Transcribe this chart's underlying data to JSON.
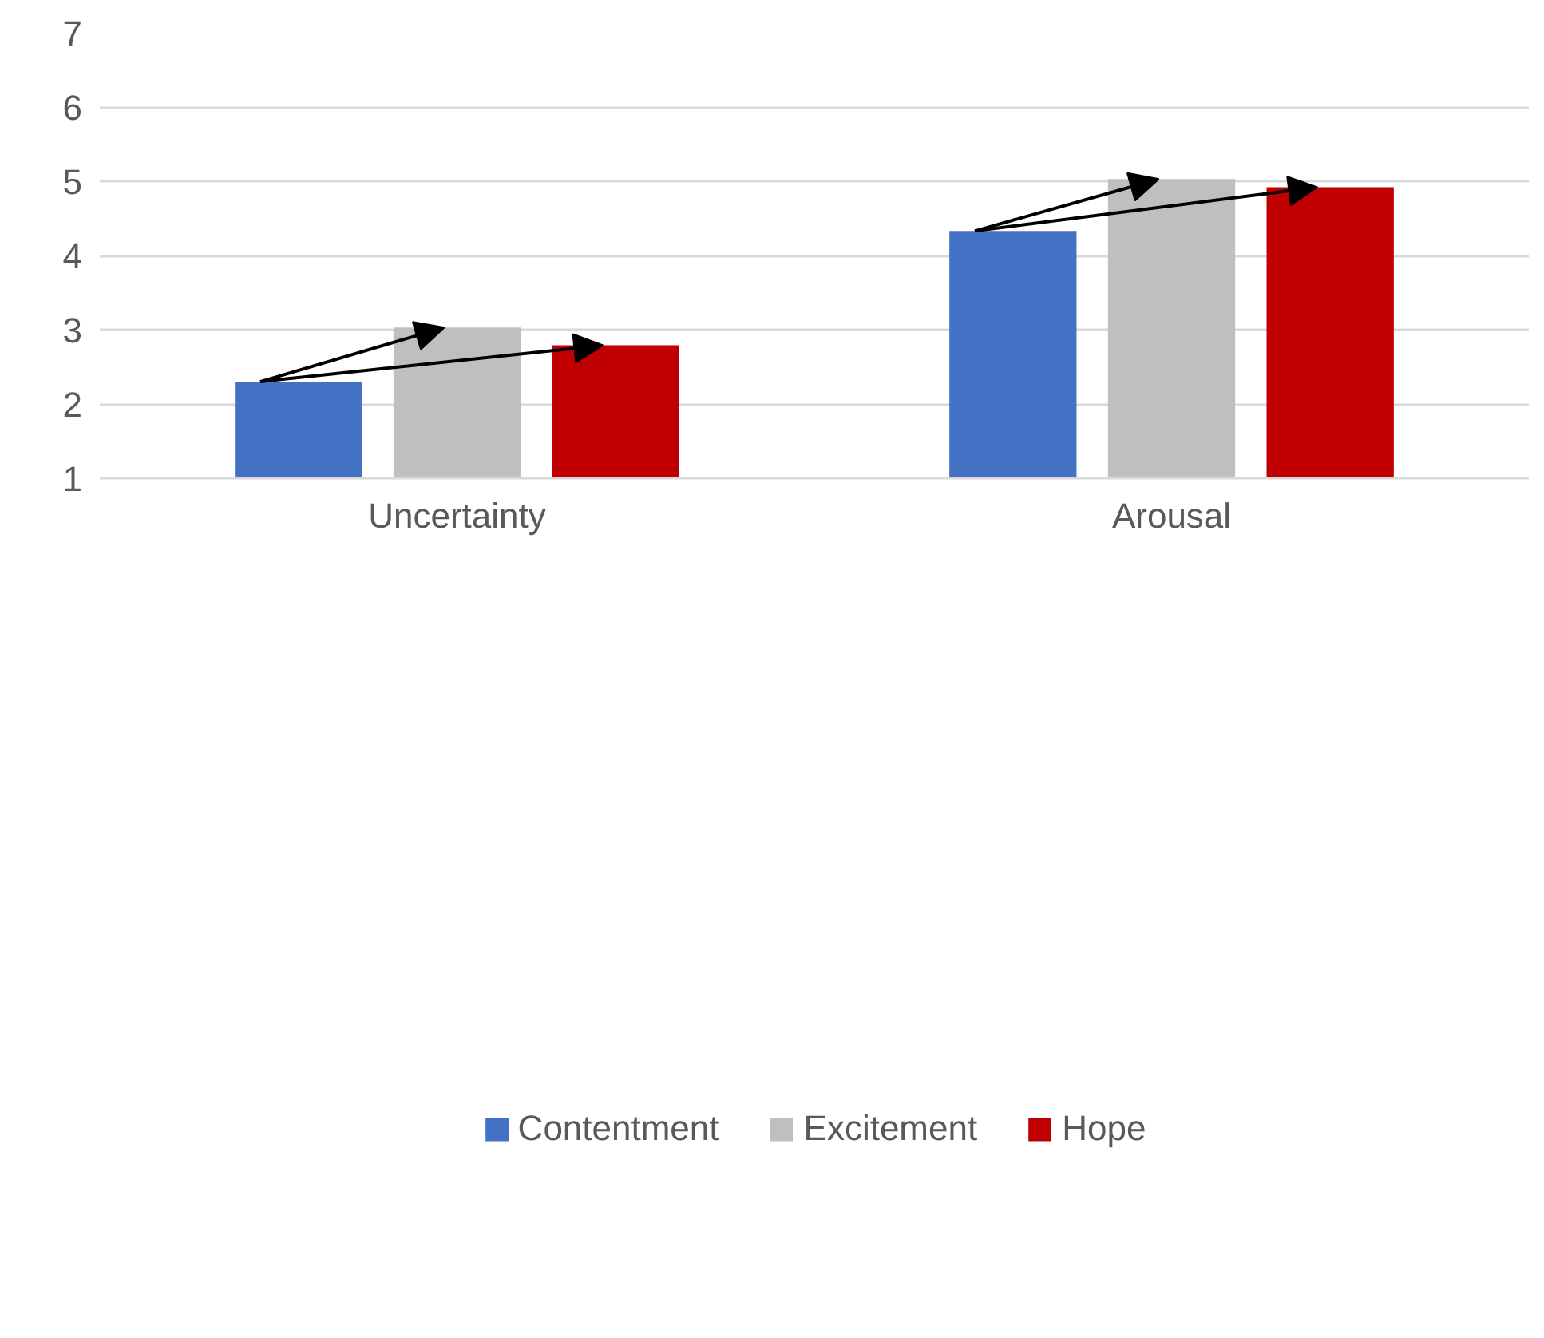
{
  "chart_data": {
    "type": "bar",
    "categories": [
      "Uncertainty",
      "Arousal"
    ],
    "series": [
      {
        "name": "Contentment",
        "color": "#4472c4",
        "values": [
          2.3,
          4.33
        ]
      },
      {
        "name": "Excitement",
        "color": "#bfbfbf",
        "values": [
          3.03,
          5.03
        ]
      },
      {
        "name": "Hope",
        "color": "#c00000",
        "values": [
          2.79,
          4.92
        ]
      }
    ],
    "ylim": [
      1,
      7
    ],
    "yticks": [
      1,
      2,
      3,
      4,
      5,
      6,
      7
    ],
    "grid": "y",
    "legend": "bottom"
  }
}
